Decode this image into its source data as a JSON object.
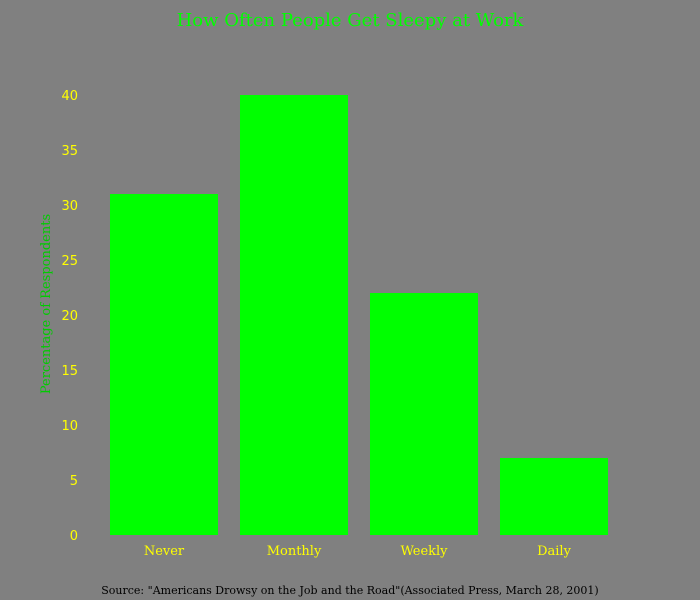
{
  "colors": {
    "background": "#808080",
    "bar": "#00ff00",
    "title": "#00ff00",
    "ylabel": "#00cc00",
    "ticks": "#ffff00",
    "source": "#000000"
  },
  "chart_data": {
    "type": "bar",
    "title": "How Often People Get Sleepy at Work",
    "xlabel": "",
    "ylabel": "Percentage of Respondents",
    "categories": [
      "Never",
      "Monthly",
      "Weekly",
      "Daily"
    ],
    "values": [
      31,
      40,
      22,
      7
    ],
    "ylim": [
      0,
      40
    ],
    "yticks": [
      "0",
      "5",
      "10",
      "15",
      "20",
      "25",
      "30",
      "35",
      "40"
    ],
    "grid": false,
    "legend": "none"
  },
  "source_note": "Source: \"Americans Drowsy on the Job and the Road\"(Associated Press, March 28, 2001)"
}
